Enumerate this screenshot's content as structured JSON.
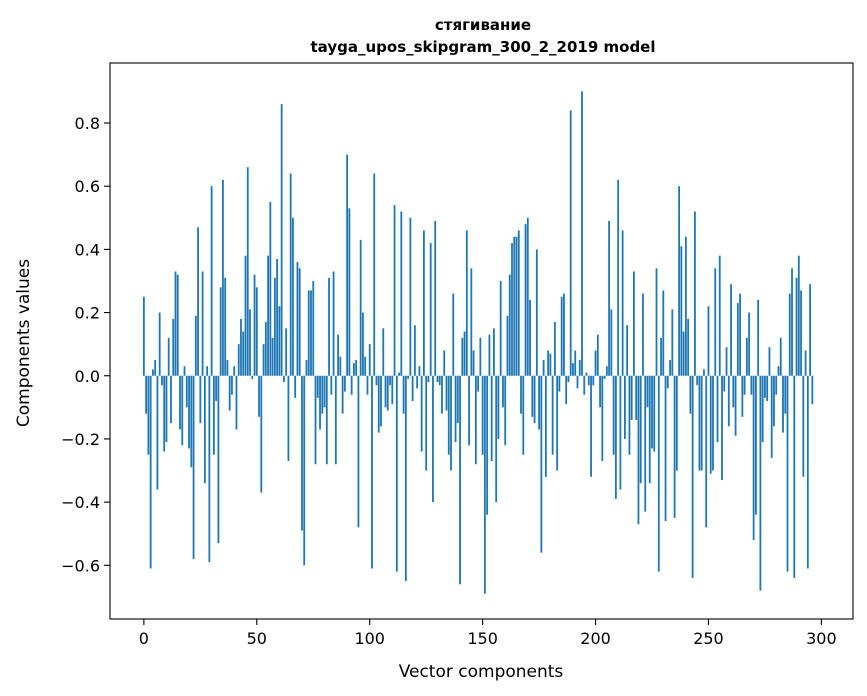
{
  "chart_data": {
    "type": "bar",
    "title": "стягивание",
    "subtitle": "tayga_upos_skipgram_300_2_2019 model",
    "xlabel": "Vector components",
    "ylabel": "Components values",
    "xlim": [
      -15,
      314
    ],
    "ylim": [
      -0.77,
      0.99
    ],
    "xticks": [
      0,
      50,
      100,
      150,
      200,
      250,
      300
    ],
    "yticks": [
      -0.6,
      -0.4,
      -0.2,
      0.0,
      0.2,
      0.4,
      0.6,
      0.8
    ],
    "ytick_labels": [
      "−0.6",
      "−0.4",
      "−0.2",
      "0.0",
      "0.2",
      "0.4",
      "0.6",
      "0.8"
    ],
    "bar_color": "#1f77b4",
    "values": [
      0.25,
      -0.12,
      -0.25,
      -0.61,
      0.02,
      0.05,
      -0.36,
      0.2,
      -0.03,
      -0.24,
      -0.21,
      0.12,
      -0.15,
      0.18,
      0.33,
      0.32,
      -0.17,
      -0.22,
      0.03,
      -0.1,
      -0.23,
      -0.29,
      -0.58,
      0.19,
      0.47,
      -0.15,
      0.33,
      -0.34,
      0.03,
      -0.59,
      0.6,
      -0.25,
      -0.08,
      -0.53,
      0.28,
      0.62,
      0.31,
      0.05,
      -0.11,
      -0.06,
      0.03,
      -0.17,
      0.1,
      0.18,
      0.14,
      0.38,
      0.66,
      0.21,
      -0.01,
      0.32,
      0.28,
      -0.13,
      -0.37,
      0.1,
      0.17,
      0.38,
      0.55,
      0.12,
      0.31,
      0.37,
      0.22,
      0.86,
      -0.02,
      0.15,
      -0.27,
      0.64,
      0.5,
      -0.07,
      0.36,
      0.34,
      -0.49,
      -0.6,
      0.05,
      0.27,
      0.27,
      0.3,
      -0.28,
      -0.07,
      -0.17,
      -0.12,
      -0.1,
      -0.28,
      0.31,
      -0.06,
      0.33,
      -0.28,
      0.13,
      0.06,
      -0.12,
      -0.05,
      0.7,
      0.53,
      -0.06,
      0.04,
      0.05,
      -0.48,
      0.43,
      0.2,
      0.06,
      -0.06,
      0.1,
      -0.61,
      0.64,
      -0.03,
      -0.18,
      -0.16,
      0.15,
      -0.1,
      -0.11,
      -0.03,
      -0.09,
      0.54,
      -0.62,
      0.01,
      0.52,
      -0.12,
      -0.65,
      -0.01,
      0.5,
      -0.08,
      0.16,
      -0.04,
      0.03,
      -0.24,
      0.46,
      -0.3,
      -0.02,
      0.42,
      -0.4,
      0.49,
      -0.02,
      -0.03,
      -0.12,
      0.08,
      -0.11,
      -0.25,
      -0.3,
      0.26,
      -0.21,
      -0.15,
      -0.66,
      0.12,
      0.14,
      0.46,
      -0.22,
      0.34,
      0.08,
      -0.28,
      -0.05,
      0.12,
      -0.25,
      -0.69,
      -0.44,
      0.13,
      -0.27,
      0.15,
      -0.4,
      -0.2,
      0.3,
      -0.1,
      -0.22,
      0.19,
      0.32,
      0.42,
      0.44,
      0.44,
      0.46,
      -0.12,
      -0.25,
      0.48,
      0.5,
      0.24,
      -0.13,
      -0.15,
      0.4,
      -0.17,
      -0.56,
      0.05,
      -0.32,
      0.08,
      0.07,
      -0.25,
      0.17,
      -0.3,
      -0.05,
      0.25,
      0.26,
      -0.09,
      -0.02,
      0.84,
      0.04,
      0.08,
      -0.04,
      0.05,
      0.9,
      -0.06,
      0.01,
      -0.03,
      -0.32,
      -0.03,
      0.08,
      0.13,
      -0.1,
      -0.27,
      -0.01,
      0.03,
      0.49,
      0.21,
      -0.25,
      -0.39,
      0.62,
      -0.36,
      0.46,
      -0.2,
      0.16,
      -0.25,
      -0.14,
      0.33,
      -0.14,
      -0.47,
      -0.34,
      0.26,
      -0.43,
      -0.1,
      -0.34,
      -0.23,
      -0.24,
      0.34,
      -0.62,
      0.12,
      0.27,
      -0.46,
      -0.04,
      0.05,
      0.21,
      -0.45,
      -0.3,
      0.6,
      0.41,
      0.14,
      0.44,
      0.18,
      -0.12,
      -0.64,
      0.52,
      -0.03,
      -0.3,
      -0.3,
      0.02,
      -0.48,
      0.22,
      -0.31,
      -0.3,
      0.34,
      -0.21,
      0.38,
      -0.33,
      -0.05,
      0.09,
      -0.16,
      0.29,
      -0.1,
      -0.19,
      0.23,
      0.26,
      -0.13,
      -0.06,
      0.12,
      0.2,
      -0.06,
      -0.52,
      -0.44,
      0.24,
      -0.68,
      -0.21,
      -0.07,
      -0.08,
      0.09,
      -0.26,
      -0.16,
      -0.06,
      0.03,
      0.12,
      -0.18,
      -0.12,
      -0.62,
      0.26,
      0.34,
      -0.64,
      0.31,
      0.38,
      0.27,
      -0.32,
      0.08,
      -0.61,
      0.29,
      -0.09
    ]
  }
}
